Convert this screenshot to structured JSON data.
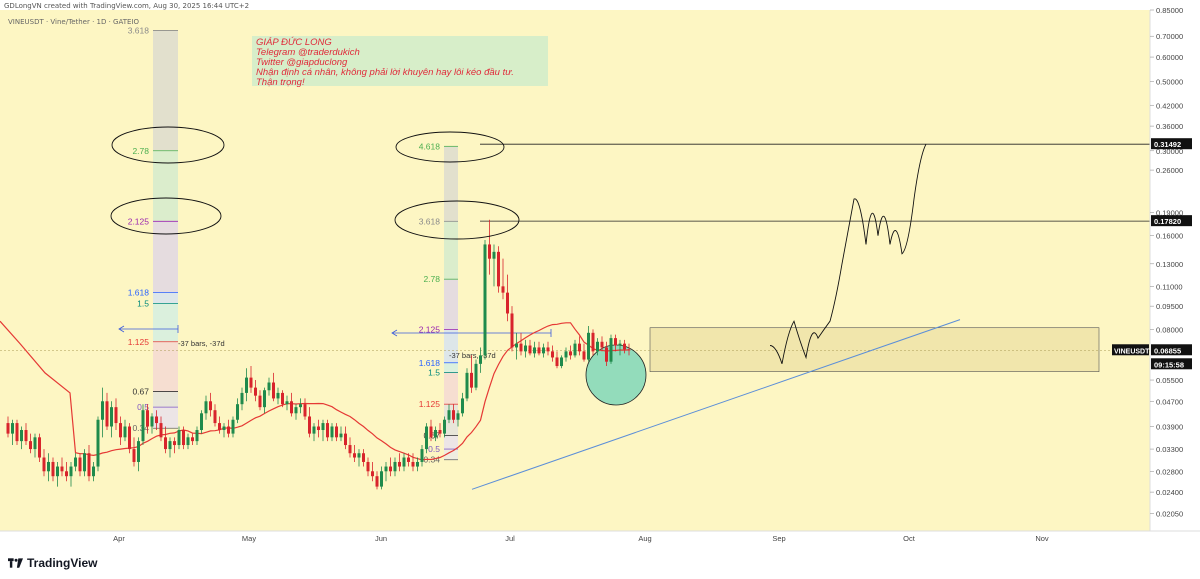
{
  "header": {
    "title": "GDLongVN created with TradingView.com, Aug 30, 2025 16:44 UTC+2"
  },
  "symbol_line": "VINEUSDT · Vine/Tether · 1D · GATEIO",
  "note": {
    "lines": [
      "GIÁP ĐỨC LONG",
      "Telegram @traderdukich",
      "Twitter @giapduclong",
      "Nhận định cá nhân, không phải lời khuyên hay lôi kéo đầu tư.",
      "Thận trọng!"
    ]
  },
  "brand": {
    "name": "TradingView",
    "icon": "tradingview-logo-icon"
  },
  "colors": {
    "background": "#fdf6c3",
    "up": "#1f8a4c",
    "down": "#d8242c",
    "ma": "#e53935",
    "trend": "#5b8ed8",
    "box": "#e7d999",
    "circle": "#6fd3b8"
  },
  "chart_data": {
    "type": "candlestick",
    "symbol": "VINEUSDT",
    "name": "Vine/Tether",
    "interval": "1D",
    "exchange": "GATEIO",
    "y_scale": "log",
    "ylim": [
      0.018,
      0.85
    ],
    "y_ticks": [
      "0.85000",
      "0.70000",
      "0.60000",
      "0.50000",
      "0.42000",
      "0.36000",
      "0.30000",
      "0.26000",
      "0.19000",
      "0.16000",
      "0.13000",
      "0.11000",
      "0.09500",
      "0.08000",
      "0.05500",
      "0.04700",
      "0.03900",
      "0.03300",
      "0.02800",
      "0.02400",
      "0.02050"
    ],
    "x_ticks": [
      "Apr",
      "May",
      "Jun",
      "Jul",
      "Aug",
      "Sep",
      "Oct",
      "Nov"
    ],
    "price_labels": [
      {
        "text": "0.31492",
        "value": 0.31492,
        "style": "dark"
      },
      {
        "text": "0.17820",
        "value": 0.1782,
        "style": "dark"
      },
      {
        "text": "VINEUSDT",
        "value": 0.06855,
        "style": "symbol"
      },
      {
        "text": "0.06855",
        "value": 0.06855,
        "style": "current"
      },
      {
        "text": "09:15:58",
        "value": 0.0618,
        "style": "countdown"
      }
    ],
    "fib_1": {
      "levels": [
        {
          "label": "3.618",
          "value": 0.73,
          "color": "#8a8a8a"
        },
        {
          "label": "2.78",
          "value": 0.3,
          "color": "#4caf50"
        },
        {
          "label": "2.125",
          "value": 0.178,
          "color": "#9c27b0"
        },
        {
          "label": "1.618",
          "value": 0.105,
          "color": "#2962ff"
        },
        {
          "label": "1.5",
          "value": 0.097,
          "color": "#00897b"
        },
        {
          "label": "1.125",
          "value": 0.073,
          "color": "#e53935"
        },
        {
          "label": "0.67",
          "value": 0.0505,
          "color": "#333333"
        },
        {
          "label": "0.5",
          "value": 0.045,
          "color": "#7e57c2"
        },
        {
          "label": "0.34",
          "value": 0.0385,
          "color": "#666666"
        }
      ],
      "measure_label": "-37 bars, -37d"
    },
    "fib_2": {
      "levels": [
        {
          "label": "4.618",
          "value": 0.31,
          "color": "#4caf50"
        },
        {
          "label": "3.618",
          "value": 0.178,
          "color": "#8a8a8a"
        },
        {
          "label": "2.78",
          "value": 0.116,
          "color": "#4caf50"
        },
        {
          "label": "2.125",
          "value": 0.08,
          "color": "#9c27b0"
        },
        {
          "label": "1.618",
          "value": 0.0625,
          "color": "#2962ff"
        },
        {
          "label": "1.5",
          "value": 0.0582,
          "color": "#00897b"
        },
        {
          "label": "1.125",
          "value": 0.046,
          "color": "#e53935"
        },
        {
          "label": "0.67",
          "value": 0.0365,
          "color": "#333333"
        },
        {
          "label": "0.5",
          "value": 0.033,
          "color": "#7e57c2"
        },
        {
          "label": "0.34",
          "value": 0.0305,
          "color": "#666666"
        }
      ],
      "measure_label": "-37 bars, -37d"
    },
    "horizontal_lines": [
      0.31492,
      0.1782
    ],
    "range_box": {
      "top": 0.081,
      "bottom": 0.0585
    },
    "candles": [
      [
        0.04,
        0.042,
        0.036,
        0.037
      ],
      [
        0.037,
        0.041,
        0.034,
        0.04
      ],
      [
        0.04,
        0.041,
        0.034,
        0.035
      ],
      [
        0.035,
        0.039,
        0.033,
        0.038
      ],
      [
        0.038,
        0.04,
        0.034,
        0.035
      ],
      [
        0.035,
        0.037,
        0.032,
        0.033
      ],
      [
        0.033,
        0.037,
        0.031,
        0.036
      ],
      [
        0.036,
        0.037,
        0.03,
        0.031
      ],
      [
        0.031,
        0.033,
        0.027,
        0.028
      ],
      [
        0.028,
        0.032,
        0.026,
        0.03
      ],
      [
        0.03,
        0.031,
        0.026,
        0.027
      ],
      [
        0.027,
        0.03,
        0.025,
        0.029
      ],
      [
        0.029,
        0.031,
        0.027,
        0.028
      ],
      [
        0.028,
        0.03,
        0.026,
        0.027
      ],
      [
        0.027,
        0.03,
        0.025,
        0.029
      ],
      [
        0.029,
        0.032,
        0.028,
        0.031
      ],
      [
        0.031,
        0.032,
        0.027,
        0.028
      ],
      [
        0.028,
        0.033,
        0.027,
        0.032
      ],
      [
        0.032,
        0.034,
        0.026,
        0.027
      ],
      [
        0.027,
        0.03,
        0.026,
        0.029
      ],
      [
        0.029,
        0.042,
        0.028,
        0.041
      ],
      [
        0.041,
        0.052,
        0.036,
        0.047
      ],
      [
        0.047,
        0.05,
        0.038,
        0.039
      ],
      [
        0.039,
        0.047,
        0.036,
        0.045
      ],
      [
        0.045,
        0.048,
        0.038,
        0.04
      ],
      [
        0.04,
        0.042,
        0.034,
        0.036
      ],
      [
        0.036,
        0.041,
        0.035,
        0.039
      ],
      [
        0.039,
        0.04,
        0.032,
        0.033
      ],
      [
        0.033,
        0.036,
        0.029,
        0.03
      ],
      [
        0.03,
        0.036,
        0.028,
        0.035
      ],
      [
        0.035,
        0.046,
        0.034,
        0.044
      ],
      [
        0.044,
        0.046,
        0.037,
        0.039
      ],
      [
        0.039,
        0.043,
        0.037,
        0.042
      ],
      [
        0.042,
        0.044,
        0.038,
        0.04
      ],
      [
        0.04,
        0.042,
        0.035,
        0.036
      ],
      [
        0.036,
        0.039,
        0.032,
        0.033
      ],
      [
        0.033,
        0.036,
        0.031,
        0.035
      ],
      [
        0.035,
        0.036,
        0.032,
        0.034
      ],
      [
        0.034,
        0.039,
        0.033,
        0.038
      ],
      [
        0.038,
        0.039,
        0.033,
        0.034
      ],
      [
        0.034,
        0.037,
        0.033,
        0.036
      ],
      [
        0.036,
        0.037,
        0.034,
        0.035
      ],
      [
        0.035,
        0.039,
        0.034,
        0.038
      ],
      [
        0.038,
        0.044,
        0.037,
        0.043
      ],
      [
        0.043,
        0.049,
        0.041,
        0.047
      ],
      [
        0.047,
        0.05,
        0.042,
        0.044
      ],
      [
        0.044,
        0.046,
        0.039,
        0.04
      ],
      [
        0.04,
        0.042,
        0.037,
        0.038
      ],
      [
        0.038,
        0.04,
        0.036,
        0.039
      ],
      [
        0.039,
        0.041,
        0.036,
        0.037
      ],
      [
        0.037,
        0.042,
        0.036,
        0.041
      ],
      [
        0.041,
        0.048,
        0.04,
        0.046
      ],
      [
        0.046,
        0.052,
        0.044,
        0.05
      ],
      [
        0.05,
        0.06,
        0.047,
        0.056
      ],
      [
        0.056,
        0.061,
        0.05,
        0.052
      ],
      [
        0.052,
        0.055,
        0.047,
        0.049
      ],
      [
        0.049,
        0.051,
        0.044,
        0.045
      ],
      [
        0.045,
        0.052,
        0.043,
        0.051
      ],
      [
        0.051,
        0.056,
        0.049,
        0.054
      ],
      [
        0.054,
        0.058,
        0.047,
        0.048
      ],
      [
        0.048,
        0.052,
        0.046,
        0.05
      ],
      [
        0.05,
        0.051,
        0.045,
        0.046
      ],
      [
        0.046,
        0.049,
        0.044,
        0.047
      ],
      [
        0.047,
        0.05,
        0.042,
        0.043
      ],
      [
        0.043,
        0.046,
        0.041,
        0.045
      ],
      [
        0.045,
        0.048,
        0.043,
        0.046
      ],
      [
        0.046,
        0.048,
        0.041,
        0.042
      ],
      [
        0.042,
        0.045,
        0.036,
        0.037
      ],
      [
        0.037,
        0.04,
        0.035,
        0.039
      ],
      [
        0.039,
        0.041,
        0.036,
        0.038
      ],
      [
        0.038,
        0.041,
        0.035,
        0.04
      ],
      [
        0.04,
        0.041,
        0.035,
        0.036
      ],
      [
        0.036,
        0.04,
        0.035,
        0.039
      ],
      [
        0.039,
        0.04,
        0.035,
        0.036
      ],
      [
        0.036,
        0.039,
        0.035,
        0.037
      ],
      [
        0.037,
        0.039,
        0.033,
        0.034
      ],
      [
        0.034,
        0.036,
        0.031,
        0.032
      ],
      [
        0.032,
        0.034,
        0.03,
        0.031
      ],
      [
        0.031,
        0.033,
        0.029,
        0.032
      ],
      [
        0.032,
        0.033,
        0.029,
        0.03
      ],
      [
        0.03,
        0.031,
        0.027,
        0.028
      ],
      [
        0.028,
        0.03,
        0.026,
        0.027
      ],
      [
        0.027,
        0.028,
        0.0245,
        0.025
      ],
      [
        0.025,
        0.029,
        0.0245,
        0.028
      ],
      [
        0.028,
        0.03,
        0.026,
        0.029
      ],
      [
        0.029,
        0.031,
        0.027,
        0.028
      ],
      [
        0.028,
        0.031,
        0.027,
        0.03
      ],
      [
        0.03,
        0.032,
        0.028,
        0.029
      ],
      [
        0.029,
        0.032,
        0.028,
        0.031
      ],
      [
        0.031,
        0.032,
        0.029,
        0.03
      ],
      [
        0.03,
        0.032,
        0.028,
        0.029
      ],
      [
        0.029,
        0.031,
        0.028,
        0.03
      ],
      [
        0.03,
        0.034,
        0.029,
        0.033
      ],
      [
        0.033,
        0.04,
        0.032,
        0.039
      ],
      [
        0.039,
        0.041,
        0.035,
        0.036
      ],
      [
        0.036,
        0.039,
        0.035,
        0.038
      ],
      [
        0.038,
        0.04,
        0.036,
        0.037
      ],
      [
        0.037,
        0.042,
        0.036,
        0.041
      ],
      [
        0.041,
        0.046,
        0.04,
        0.044
      ],
      [
        0.044,
        0.046,
        0.04,
        0.041
      ],
      [
        0.041,
        0.044,
        0.039,
        0.043
      ],
      [
        0.043,
        0.05,
        0.042,
        0.048
      ],
      [
        0.048,
        0.06,
        0.047,
        0.058
      ],
      [
        0.058,
        0.066,
        0.05,
        0.052
      ],
      [
        0.052,
        0.064,
        0.051,
        0.062
      ],
      [
        0.062,
        0.07,
        0.058,
        0.066
      ],
      [
        0.066,
        0.155,
        0.064,
        0.15
      ],
      [
        0.15,
        0.18,
        0.12,
        0.135
      ],
      [
        0.135,
        0.15,
        0.11,
        0.142
      ],
      [
        0.142,
        0.148,
        0.105,
        0.11
      ],
      [
        0.11,
        0.135,
        0.1,
        0.105
      ],
      [
        0.105,
        0.12,
        0.085,
        0.09
      ],
      [
        0.09,
        0.095,
        0.068,
        0.07
      ],
      [
        0.07,
        0.078,
        0.064,
        0.072
      ],
      [
        0.072,
        0.078,
        0.066,
        0.068
      ],
      [
        0.068,
        0.074,
        0.065,
        0.071
      ],
      [
        0.071,
        0.074,
        0.066,
        0.067
      ],
      [
        0.067,
        0.073,
        0.065,
        0.07
      ],
      [
        0.07,
        0.073,
        0.066,
        0.067
      ],
      [
        0.067,
        0.072,
        0.065,
        0.07
      ],
      [
        0.07,
        0.073,
        0.066,
        0.068
      ],
      [
        0.068,
        0.071,
        0.063,
        0.065
      ],
      [
        0.065,
        0.068,
        0.06,
        0.061
      ],
      [
        0.061,
        0.066,
        0.06,
        0.065
      ],
      [
        0.065,
        0.07,
        0.063,
        0.068
      ],
      [
        0.068,
        0.071,
        0.064,
        0.066
      ],
      [
        0.066,
        0.074,
        0.065,
        0.072
      ],
      [
        0.072,
        0.076,
        0.066,
        0.068
      ],
      [
        0.068,
        0.072,
        0.063,
        0.064
      ],
      [
        0.064,
        0.082,
        0.063,
        0.078
      ],
      [
        0.078,
        0.08,
        0.066,
        0.068
      ],
      [
        0.068,
        0.075,
        0.066,
        0.073
      ],
      [
        0.073,
        0.076,
        0.068,
        0.07
      ],
      [
        0.07,
        0.073,
        0.061,
        0.063
      ],
      [
        0.063,
        0.077,
        0.062,
        0.075
      ],
      [
        0.075,
        0.077,
        0.068,
        0.071
      ],
      [
        0.071,
        0.074,
        0.066,
        0.072
      ],
      [
        0.072,
        0.074,
        0.067,
        0.069
      ],
      [
        0.069,
        0.072,
        0.066,
        0.06855
      ]
    ],
    "projection": [
      [
        0.071,
        0.062
      ],
      [
        0.079,
        0.085
      ],
      [
        0.073,
        0.065
      ],
      [
        0.085,
        0.075
      ],
      [
        0.08,
        0.085
      ],
      [
        0.1,
        0.13
      ],
      [
        0.165,
        0.21
      ],
      [
        0.215,
        0.15
      ],
      [
        0.23,
        0.16
      ],
      [
        0.22,
        0.15
      ],
      [
        0.19,
        0.14
      ],
      [
        0.145,
        0.21
      ],
      [
        0.29,
        0.315
      ]
    ]
  }
}
